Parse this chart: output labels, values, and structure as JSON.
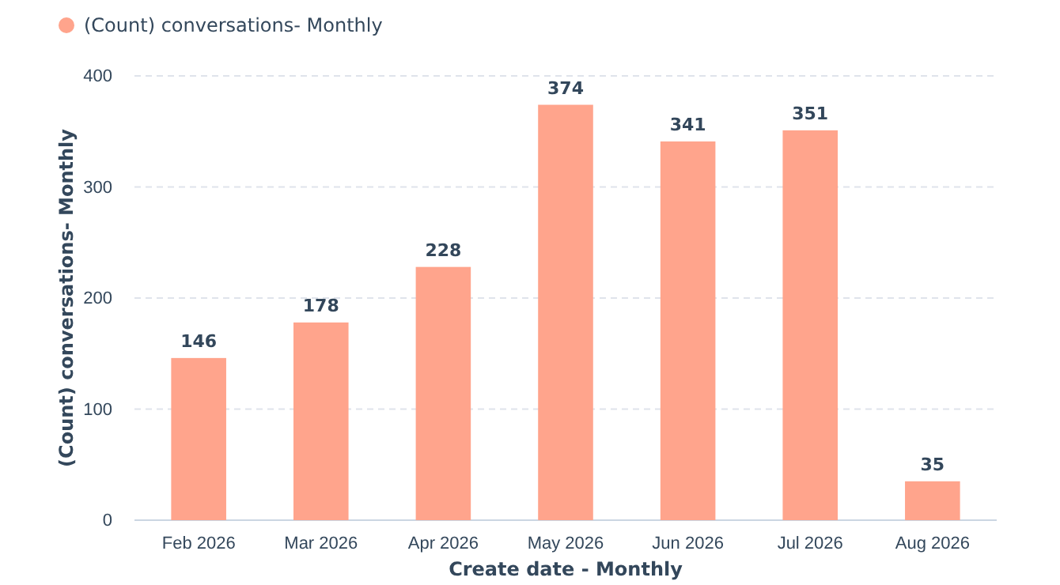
{
  "chart_data": {
    "type": "bar",
    "xlabel": "Create date - Monthly",
    "ylabel": "(Count) conversations- Monthly",
    "categories": [
      "Feb 2026",
      "Mar 2026",
      "Apr 2026",
      "May 2026",
      "Jun 2026",
      "Jul 2026",
      "Aug 2026"
    ],
    "series": [
      {
        "name": "(Count) conversations- Monthly",
        "color": "#ffa48c",
        "values": [
          146,
          178,
          228,
          374,
          341,
          351,
          35
        ]
      }
    ],
    "ylim": [
      0,
      400
    ],
    "yticks": [
      0,
      100,
      200,
      300,
      400
    ],
    "grid": "y",
    "legend": "top left",
    "data_labels": true
  }
}
